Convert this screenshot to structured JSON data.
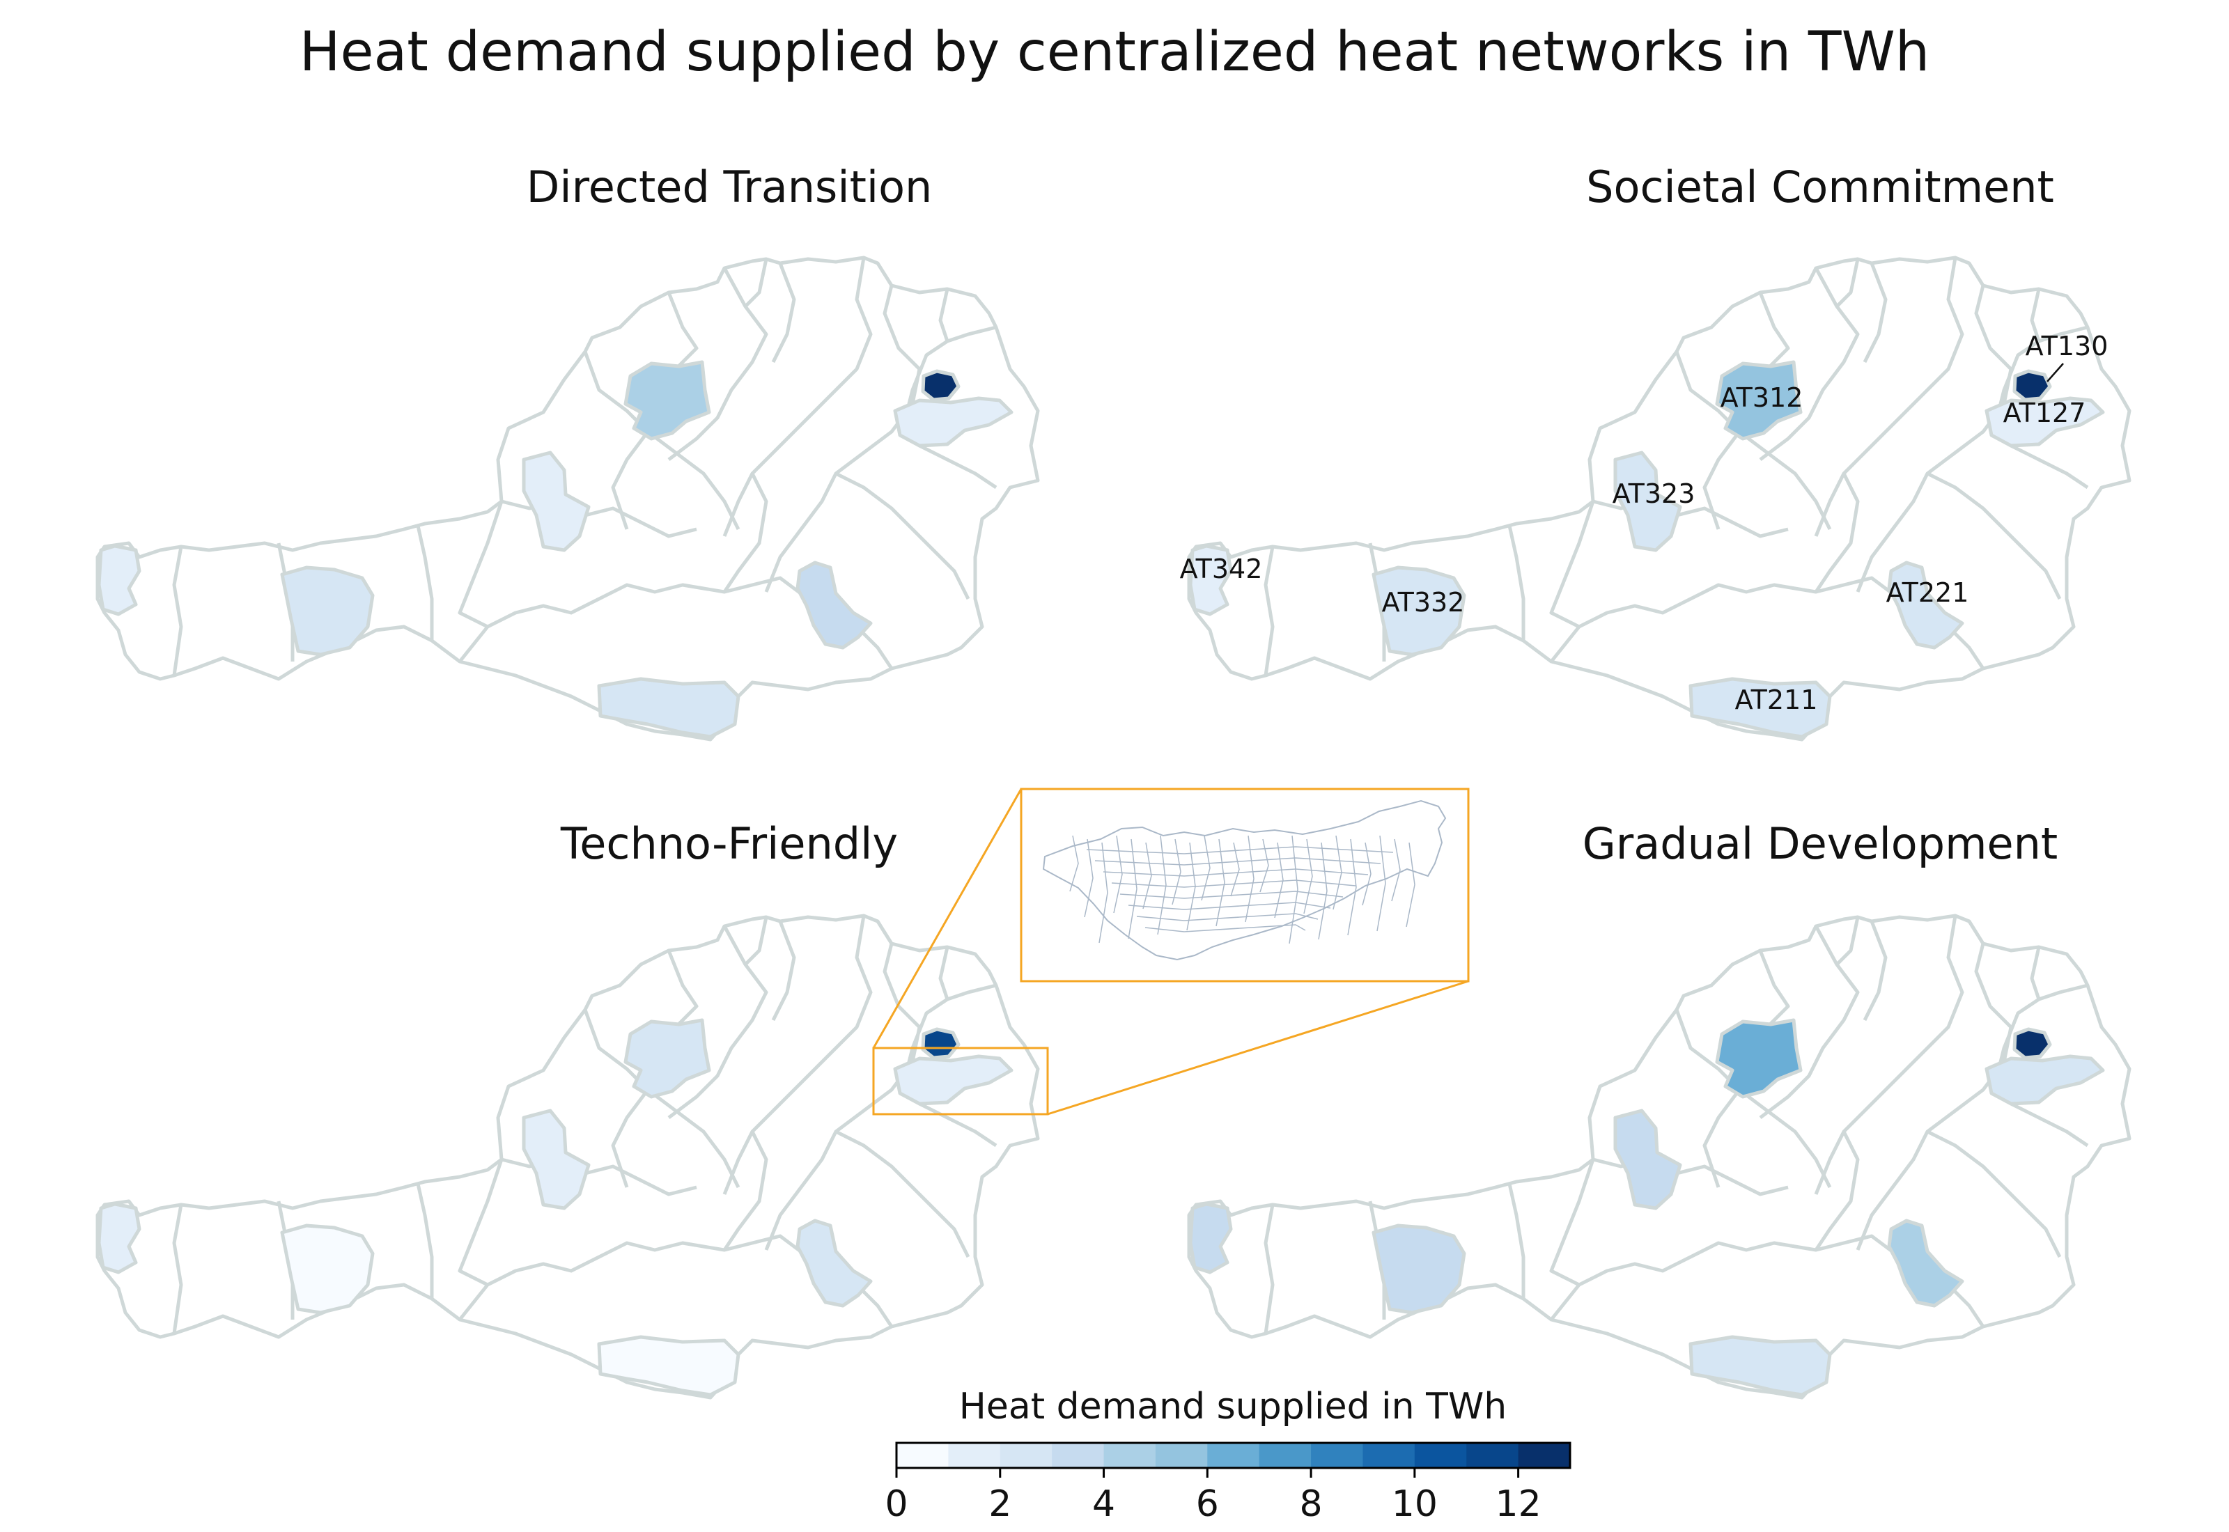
{
  "figure": {
    "title": "Heat demand supplied by centralized heat networks in TWh"
  },
  "colors": {
    "border": "#cfd8d8",
    "inset_border": "#f5a623",
    "inset_region_border": "#aab8c8",
    "label_text": "#111111"
  },
  "panels": [
    {
      "id": "directed",
      "title": "Directed Transition",
      "values": {
        "AT130": 13.0,
        "AT127": 1.6,
        "AT312": 4.1,
        "AT323": 1.8,
        "AT342": 1.9,
        "AT332": 2.2,
        "AT221": 3.0,
        "AT211": 2.1
      },
      "labels": []
    },
    {
      "id": "societal",
      "title": "Societal Commitment",
      "values": {
        "AT130": 13.0,
        "AT127": 1.6,
        "AT312": 5.2,
        "AT323": 2.6,
        "AT342": 1.8,
        "AT332": 2.0,
        "AT221": 2.6,
        "AT211": 2.3
      },
      "labels": [
        "AT130",
        "AT127",
        "AT312",
        "AT323",
        "AT342",
        "AT332",
        "AT221",
        "AT211"
      ]
    },
    {
      "id": "techno",
      "title": "Techno-Friendly",
      "values": {
        "AT130": 11.0,
        "AT127": 1.4,
        "AT312": 2.8,
        "AT323": 1.6,
        "AT342": 1.4,
        "AT332": 0.7,
        "AT221": 2.4,
        "AT211": 0.6
      },
      "labels": []
    },
    {
      "id": "gradual",
      "title": "Gradual Development",
      "values": {
        "AT130": 13.0,
        "AT127": 2.6,
        "AT312": 6.6,
        "AT323": 3.3,
        "AT342": 3.0,
        "AT332": 3.2,
        "AT221": 4.6,
        "AT211": 2.2
      },
      "labels": []
    }
  ],
  "inset": {
    "source_panel": "Techno-Friendly",
    "regions": [
      "AT130",
      "AT127"
    ]
  },
  "colorbar": {
    "title": "Heat demand supplied in TWh",
    "min": 0,
    "max": 13,
    "bins": 13,
    "ticks": [
      0,
      2,
      4,
      6,
      8,
      10,
      12
    ],
    "tick_labels": [
      "0",
      "2",
      "4",
      "6",
      "8",
      "10",
      "12"
    ],
    "colors": [
      "#f7fbff",
      "#e3eef9",
      "#d6e6f4",
      "#c6dbef",
      "#abd0e6",
      "#94c4df",
      "#6aaed6",
      "#4a98c9",
      "#3082be",
      "#1c6cb1",
      "#0b559f",
      "#08468b",
      "#08306b"
    ]
  }
}
